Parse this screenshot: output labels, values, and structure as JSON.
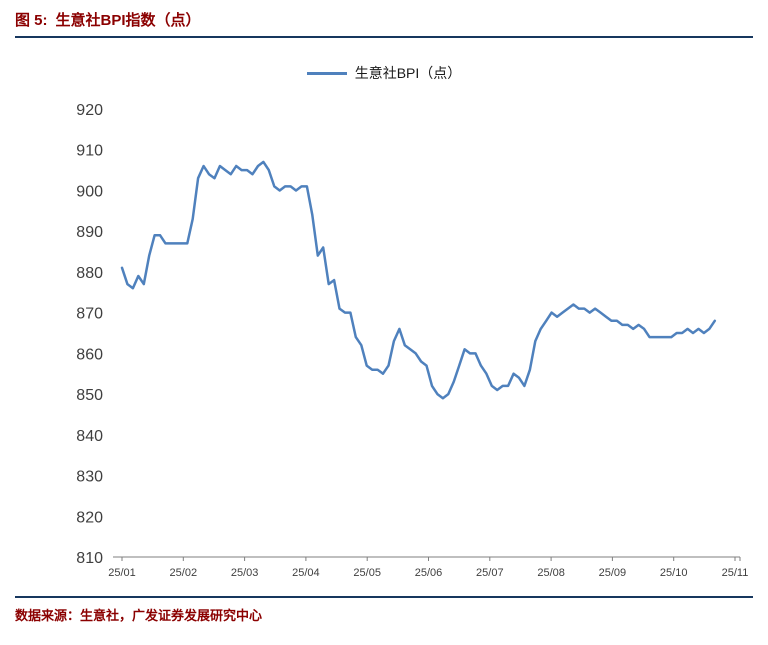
{
  "header": {
    "figure_label": "图 5:",
    "title": "生意社BPI指数（点）"
  },
  "legend": {
    "label": "生意社BPI（点）"
  },
  "footer": {
    "source": "数据来源：生意社，广发证券发展研究中心"
  },
  "colors": {
    "line": "#4F81BD",
    "rule": "#17375E",
    "title_text": "#8B0000",
    "tick_text": "#3f3f3f",
    "axis": "#7f7f7f"
  },
  "chart_data": {
    "type": "line",
    "title": "生意社BPI指数（点）",
    "xlabel": "",
    "ylabel": "",
    "ylim": [
      810,
      920
    ],
    "ytick_step": 10,
    "grid": false,
    "legend_position": "top-center",
    "x_labels": [
      "25/01",
      "25/02",
      "25/03",
      "25/04",
      "25/05",
      "25/06",
      "25/07",
      "25/08",
      "25/09",
      "25/10",
      "25/11"
    ],
    "x_end_month": 9.67,
    "series": [
      {
        "name": "生意社BPI（点）",
        "values": [
          881,
          877,
          876,
          879,
          877,
          884,
          889,
          889,
          887,
          887,
          887,
          887,
          887,
          893,
          903,
          906,
          904,
          903,
          906,
          905,
          904,
          906,
          905,
          905,
          904,
          906,
          907,
          905,
          901,
          900,
          901,
          901,
          900,
          901,
          901,
          894,
          884,
          886,
          877,
          878,
          871,
          870,
          870,
          864,
          862,
          857,
          856,
          856,
          855,
          857,
          863,
          866,
          862,
          861,
          860,
          858,
          857,
          852,
          850,
          849,
          850,
          853,
          857,
          861,
          860,
          860,
          857,
          855,
          852,
          851,
          852,
          852,
          855,
          854,
          852,
          856,
          863,
          866,
          868,
          870,
          869,
          870,
          871,
          872,
          871,
          871,
          870,
          871,
          870,
          869,
          868,
          868,
          867,
          867,
          866,
          867,
          866,
          864,
          864,
          864,
          864,
          864,
          865,
          865,
          866,
          865,
          866,
          865,
          866,
          868
        ]
      }
    ]
  }
}
